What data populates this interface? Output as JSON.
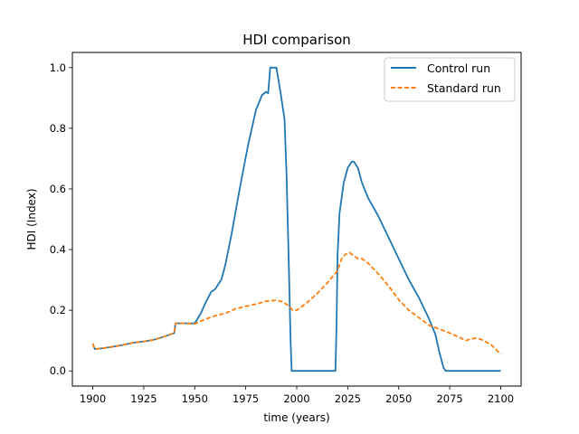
{
  "chart_data": {
    "type": "line",
    "title": "HDI comparison",
    "xlabel": "time (years)",
    "ylabel": "HDI (Index)",
    "xlim": [
      1890,
      2110
    ],
    "ylim": [
      -0.05,
      1.05
    ],
    "xticks": [
      1900,
      1925,
      1950,
      1975,
      2000,
      2025,
      2050,
      2075,
      2100
    ],
    "yticks": [
      0.0,
      0.2,
      0.4,
      0.6,
      0.8,
      1.0
    ],
    "ytick_labels": [
      "0.0",
      "0.2",
      "0.4",
      "0.6",
      "0.8",
      "1.0"
    ],
    "grid": false,
    "legend_position": "top-right",
    "series": [
      {
        "name": "Control run",
        "color": "#1f77b4",
        "style": "solid",
        "x": [
          1900,
          1901,
          1905,
          1910,
          1915,
          1920,
          1925,
          1930,
          1935,
          1940,
          1940.5,
          1945,
          1950,
          1953,
          1955,
          1958,
          1960,
          1962,
          1963,
          1965,
          1968,
          1972,
          1976,
          1980,
          1983,
          1985,
          1986,
          1987,
          1989,
          1990,
          1992,
          1994,
          1995,
          1996,
          1997,
          1997.5,
          2000,
          2010,
          2019,
          2019.5,
          2020,
          2021,
          2023,
          2025,
          2027,
          2028,
          2030,
          2032,
          2035,
          2040,
          2045,
          2050,
          2055,
          2060,
          2065,
          2068,
          2070,
          2072,
          2073,
          2073.5,
          2080,
          2090,
          2100
        ],
        "y": [
          0.09,
          0.072,
          0.075,
          0.08,
          0.086,
          0.093,
          0.097,
          0.103,
          0.113,
          0.125,
          0.157,
          0.157,
          0.157,
          0.19,
          0.22,
          0.26,
          0.27,
          0.29,
          0.3,
          0.35,
          0.45,
          0.6,
          0.74,
          0.86,
          0.91,
          0.92,
          0.915,
          1.0,
          1.0,
          1.0,
          0.92,
          0.83,
          0.65,
          0.38,
          0.1,
          0.0,
          0.0,
          0.0,
          0.0,
          0.15,
          0.38,
          0.52,
          0.62,
          0.67,
          0.69,
          0.69,
          0.67,
          0.62,
          0.57,
          0.51,
          0.44,
          0.37,
          0.3,
          0.24,
          0.17,
          0.12,
          0.06,
          0.01,
          0.0,
          0.0,
          0.0,
          0.0,
          0.0
        ]
      },
      {
        "name": "Standard run",
        "color": "#ff7f0e",
        "style": "dashed",
        "x": [
          1900,
          1901,
          1905,
          1910,
          1915,
          1920,
          1925,
          1930,
          1935,
          1940,
          1940.5,
          1945,
          1950,
          1955,
          1960,
          1965,
          1970,
          1975,
          1980,
          1985,
          1990,
          1993,
          1996,
          1998,
          2000,
          2005,
          2010,
          2015,
          2020,
          2022,
          2024,
          2026,
          2028,
          2030,
          2032,
          2035,
          2040,
          2045,
          2050,
          2055,
          2060,
          2065,
          2070,
          2075,
          2080,
          2083,
          2085,
          2088,
          2090,
          2095,
          2100
        ],
        "y": [
          0.09,
          0.072,
          0.075,
          0.08,
          0.086,
          0.093,
          0.097,
          0.103,
          0.113,
          0.125,
          0.157,
          0.157,
          0.155,
          0.17,
          0.182,
          0.19,
          0.205,
          0.213,
          0.22,
          0.23,
          0.233,
          0.228,
          0.215,
          0.2,
          0.2,
          0.225,
          0.255,
          0.29,
          0.33,
          0.37,
          0.385,
          0.39,
          0.38,
          0.37,
          0.37,
          0.355,
          0.32,
          0.28,
          0.235,
          0.2,
          0.175,
          0.15,
          0.138,
          0.125,
          0.11,
          0.1,
          0.105,
          0.108,
          0.105,
          0.088,
          0.055
        ]
      }
    ]
  }
}
